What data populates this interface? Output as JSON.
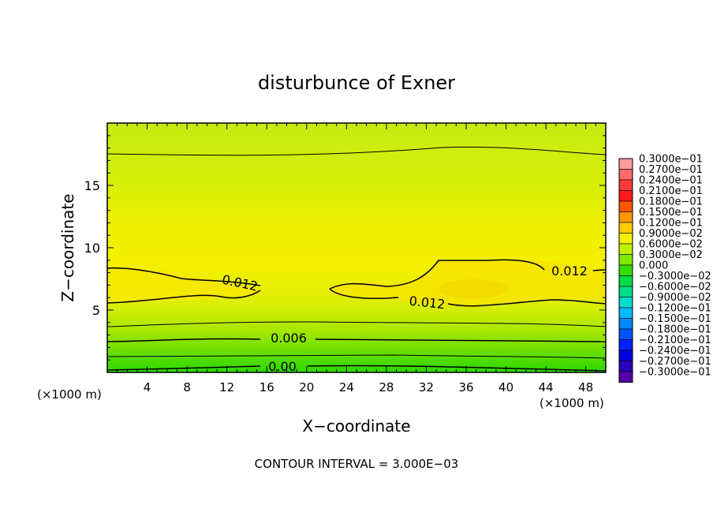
{
  "chart_data": {
    "type": "heatmap",
    "title": "disturbunce of Exner",
    "xlabel": "X−coordinate",
    "ylabel": "Z−coordinate",
    "x_unit": "(×1000 m)",
    "y_unit": "(×1000 m)",
    "xlim": [
      0,
      50
    ],
    "ylim": [
      0,
      20
    ],
    "x_ticks": [
      "4",
      "8",
      "12",
      "16",
      "20",
      "24",
      "28",
      "32",
      "36",
      "40",
      "44",
      "48"
    ],
    "y_ticks": [
      "5",
      "10",
      "15"
    ],
    "footer": "CONTOUR INTERVAL = 3.000E−03",
    "contour_labels": [
      "0.012",
      "0.012",
      "0.012",
      "0.006",
      "0.00"
    ],
    "legend": {
      "placement": "right",
      "entries": [
        {
          "label": "0.3000e−01",
          "color": "#ff9a9a"
        },
        {
          "label": "0.2700e−01",
          "color": "#ff6a6a"
        },
        {
          "label": "0.2400e−01",
          "color": "#ff3a3a"
        },
        {
          "label": "0.2100e−01",
          "color": "#ff1a1a"
        },
        {
          "label": "0.1800e−01",
          "color": "#ff5500"
        },
        {
          "label": "0.1500e−01",
          "color": "#ff9900"
        },
        {
          "label": "0.1200e−01",
          "color": "#ffcc00"
        },
        {
          "label": "0.9000e−02",
          "color": "#f2f000"
        },
        {
          "label": "0.6000e−02",
          "color": "#bff000"
        },
        {
          "label": "0.3000e−02",
          "color": "#7fe800"
        },
        {
          "label": "0.000",
          "color": "#33dd00"
        },
        {
          "label": "−0.3000e−02",
          "color": "#00dd44"
        },
        {
          "label": "−0.6000e−02",
          "color": "#00dd88"
        },
        {
          "label": "−0.9000e−02",
          "color": "#00ddcc"
        },
        {
          "label": "−0.1200e−01",
          "color": "#00bbff"
        },
        {
          "label": "−0.1500e−01",
          "color": "#0088ff"
        },
        {
          "label": "−0.1800e−01",
          "color": "#0055ff"
        },
        {
          "label": "−0.2100e−01",
          "color": "#0022ff"
        },
        {
          "label": "−0.2400e−01",
          "color": "#0000dd"
        },
        {
          "label": "−0.2700e−01",
          "color": "#2a00bb"
        },
        {
          "label": "−0.3000e−01",
          "color": "#5500aa"
        }
      ]
    }
  }
}
